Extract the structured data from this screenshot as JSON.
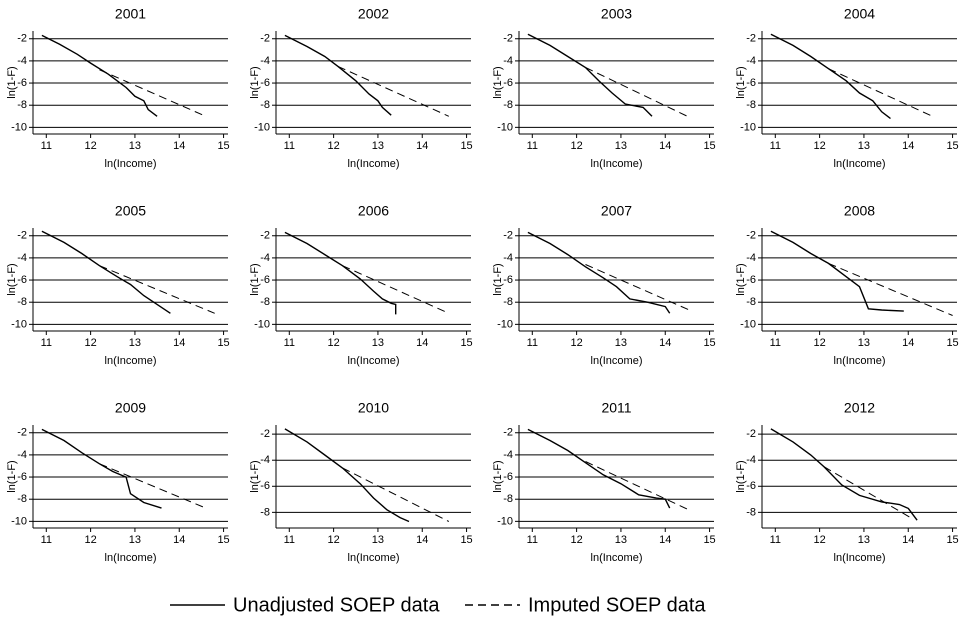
{
  "legend": [
    {
      "name": "Unadjusted SOEP data",
      "color": "#000000",
      "dash": "none"
    },
    {
      "name": "Imputed SOEP data",
      "color": "#000000",
      "dash": "8 5"
    }
  ],
  "chart_data": [
    {
      "type": "line",
      "title": "2001",
      "xlabel": "ln(Income)",
      "ylabel": "ln(1-F)",
      "xlim": [
        10.7,
        15.1
      ],
      "ylim": [
        -10.6,
        -1.3
      ],
      "xticks": [
        11,
        12,
        13,
        14,
        15
      ],
      "yticks": [
        -2,
        -4,
        -6,
        -8,
        -10
      ],
      "grid": true,
      "series": [
        {
          "x": [
            10.9,
            11.3,
            11.7,
            12.0,
            12.4,
            12.8,
            13.0,
            13.2,
            13.3,
            13.5
          ],
          "values": [
            -1.7,
            -2.5,
            -3.4,
            -4.2,
            -5.2,
            -6.4,
            -7.2,
            -7.6,
            -8.4,
            -9.0
          ]
        },
        {
          "x": [
            12.2,
            14.6
          ],
          "values": [
            -4.8,
            -9.0
          ]
        }
      ]
    },
    {
      "type": "line",
      "title": "2002",
      "xlabel": "ln(Income)",
      "ylabel": "ln(1-F)",
      "xlim": [
        10.7,
        15.1
      ],
      "ylim": [
        -10.6,
        -1.3
      ],
      "xticks": [
        11,
        12,
        13,
        14,
        15
      ],
      "yticks": [
        -2,
        -4,
        -6,
        -8,
        -10
      ],
      "grid": true,
      "series": [
        {
          "x": [
            10.9,
            11.4,
            11.8,
            12.1,
            12.5,
            12.8,
            13.0,
            13.1,
            13.3
          ],
          "values": [
            -1.7,
            -2.7,
            -3.6,
            -4.5,
            -5.8,
            -7.0,
            -7.6,
            -8.2,
            -8.9
          ]
        },
        {
          "x": [
            12.1,
            14.6
          ],
          "values": [
            -4.5,
            -9.0
          ]
        }
      ]
    },
    {
      "type": "line",
      "title": "2003",
      "xlabel": "ln(Income)",
      "ylabel": "ln(1-F)",
      "xlim": [
        10.7,
        15.1
      ],
      "ylim": [
        -10.6,
        -1.3
      ],
      "xticks": [
        11,
        12,
        13,
        14,
        15
      ],
      "yticks": [
        -2,
        -4,
        -6,
        -8,
        -10
      ],
      "grid": true,
      "series": [
        {
          "x": [
            10.9,
            11.4,
            11.8,
            12.2,
            12.5,
            12.8,
            13.1,
            13.5,
            13.7
          ],
          "values": [
            -1.6,
            -2.6,
            -3.6,
            -4.6,
            -5.8,
            -6.9,
            -7.9,
            -8.2,
            -9.0
          ]
        },
        {
          "x": [
            12.2,
            14.5
          ],
          "values": [
            -4.6,
            -9.0
          ]
        }
      ]
    },
    {
      "type": "line",
      "title": "2004",
      "xlabel": "ln(Income)",
      "ylabel": "ln(1-F)",
      "xlim": [
        10.7,
        15.1
      ],
      "ylim": [
        -10.6,
        -1.3
      ],
      "xticks": [
        11,
        12,
        13,
        14,
        15
      ],
      "yticks": [
        -2,
        -4,
        -6,
        -8,
        -10
      ],
      "grid": true,
      "series": [
        {
          "x": [
            10.9,
            11.4,
            11.8,
            12.2,
            12.6,
            12.9,
            13.2,
            13.4,
            13.6
          ],
          "values": [
            -1.6,
            -2.6,
            -3.6,
            -4.7,
            -5.8,
            -6.9,
            -7.6,
            -8.6,
            -9.2
          ]
        },
        {
          "x": [
            12.2,
            14.6
          ],
          "values": [
            -4.7,
            -9.1
          ]
        }
      ]
    },
    {
      "type": "line",
      "title": "2005",
      "xlabel": "ln(Income)",
      "ylabel": "ln(1-F)",
      "xlim": [
        10.7,
        15.1
      ],
      "ylim": [
        -10.6,
        -1.3
      ],
      "xticks": [
        11,
        12,
        13,
        14,
        15
      ],
      "yticks": [
        -2,
        -4,
        -6,
        -8,
        -10
      ],
      "grid": true,
      "series": [
        {
          "x": [
            10.9,
            11.4,
            11.8,
            12.2,
            12.6,
            12.9,
            13.2,
            13.5,
            13.8
          ],
          "values": [
            -1.6,
            -2.6,
            -3.6,
            -4.7,
            -5.7,
            -6.4,
            -7.4,
            -8.2,
            -9.0
          ]
        },
        {
          "x": [
            12.2,
            14.8
          ],
          "values": [
            -4.7,
            -9.0
          ]
        }
      ]
    },
    {
      "type": "line",
      "title": "2006",
      "xlabel": "ln(Income)",
      "ylabel": "ln(1-F)",
      "xlim": [
        10.7,
        15.1
      ],
      "ylim": [
        -10.6,
        -1.3
      ],
      "xticks": [
        11,
        12,
        13,
        14,
        15
      ],
      "yticks": [
        -2,
        -4,
        -6,
        -8,
        -10
      ],
      "grid": true,
      "series": [
        {
          "x": [
            10.9,
            11.4,
            11.8,
            12.2,
            12.6,
            12.9,
            13.1,
            13.3,
            13.4,
            13.4
          ],
          "values": [
            -1.7,
            -2.7,
            -3.7,
            -4.7,
            -5.9,
            -7.0,
            -7.7,
            -8.1,
            -8.2,
            -9.1
          ]
        },
        {
          "x": [
            12.2,
            14.6
          ],
          "values": [
            -4.7,
            -9.0
          ]
        }
      ]
    },
    {
      "type": "line",
      "title": "2007",
      "xlabel": "ln(Income)",
      "ylabel": "ln(1-F)",
      "xlim": [
        10.7,
        15.1
      ],
      "ylim": [
        -10.6,
        -1.3
      ],
      "xticks": [
        11,
        12,
        13,
        14,
        15
      ],
      "yticks": [
        -2,
        -4,
        -6,
        -8,
        -10
      ],
      "grid": true,
      "series": [
        {
          "x": [
            10.9,
            11.4,
            11.8,
            12.2,
            12.6,
            12.9,
            13.2,
            13.6,
            14.0,
            14.1
          ],
          "values": [
            -1.7,
            -2.7,
            -3.7,
            -4.8,
            -5.8,
            -6.6,
            -7.7,
            -8.0,
            -8.4,
            -9.0
          ]
        },
        {
          "x": [
            12.2,
            14.6
          ],
          "values": [
            -4.6,
            -8.8
          ]
        }
      ]
    },
    {
      "type": "line",
      "title": "2008",
      "xlabel": "ln(Income)",
      "ylabel": "ln(1-F)",
      "xlim": [
        10.7,
        15.1
      ],
      "ylim": [
        -10.6,
        -1.3
      ],
      "xticks": [
        11,
        12,
        13,
        14,
        15
      ],
      "yticks": [
        -2,
        -4,
        -6,
        -8,
        -10
      ],
      "grid": true,
      "series": [
        {
          "x": [
            10.9,
            11.4,
            11.8,
            12.2,
            12.6,
            12.9,
            13.1,
            13.4,
            13.9
          ],
          "values": [
            -1.6,
            -2.6,
            -3.6,
            -4.5,
            -5.7,
            -6.6,
            -8.6,
            -8.7,
            -8.8
          ]
        },
        {
          "x": [
            12.2,
            15.0
          ],
          "values": [
            -4.5,
            -9.2
          ]
        }
      ]
    },
    {
      "type": "line",
      "title": "2009",
      "xlabel": "ln(Income)",
      "ylabel": "ln(1-F)",
      "xlim": [
        10.7,
        15.1
      ],
      "ylim": [
        -10.6,
        -1.3
      ],
      "xticks": [
        11,
        12,
        13,
        14,
        15
      ],
      "yticks": [
        -2,
        -4,
        -6,
        -8,
        -10
      ],
      "grid": true,
      "series": [
        {
          "x": [
            10.9,
            11.4,
            11.8,
            12.2,
            12.5,
            12.8,
            12.9,
            13.2,
            13.6
          ],
          "values": [
            -1.7,
            -2.7,
            -3.8,
            -4.8,
            -5.5,
            -6.0,
            -7.5,
            -8.3,
            -8.8
          ]
        },
        {
          "x": [
            12.2,
            14.6
          ],
          "values": [
            -4.8,
            -8.8
          ]
        }
      ]
    },
    {
      "type": "line",
      "title": "2010",
      "xlabel": "ln(Income)",
      "ylabel": "ln(1-F)",
      "xlim": [
        10.7,
        15.1
      ],
      "ylim": [
        -9.2,
        -1.3
      ],
      "xticks": [
        11,
        12,
        13,
        14,
        15
      ],
      "yticks": [
        -2,
        -4,
        -6,
        -8
      ],
      "grid": true,
      "series": [
        {
          "x": [
            10.9,
            11.4,
            11.8,
            12.2,
            12.6,
            12.9,
            13.2,
            13.5,
            13.7
          ],
          "values": [
            -1.6,
            -2.6,
            -3.6,
            -4.6,
            -5.8,
            -6.9,
            -7.8,
            -8.4,
            -8.7
          ]
        },
        {
          "x": [
            12.2,
            14.6
          ],
          "values": [
            -4.6,
            -8.7
          ]
        }
      ]
    },
    {
      "type": "line",
      "title": "2011",
      "xlabel": "ln(Income)",
      "ylabel": "ln(1-F)",
      "xlim": [
        10.7,
        15.1
      ],
      "ylim": [
        -10.6,
        -1.3
      ],
      "xticks": [
        11,
        12,
        13,
        14,
        15
      ],
      "yticks": [
        -2,
        -4,
        -6,
        -8,
        -10
      ],
      "grid": true,
      "series": [
        {
          "x": [
            10.9,
            11.4,
            11.8,
            12.2,
            12.6,
            13.0,
            13.4,
            13.8,
            14.0,
            14.1
          ],
          "values": [
            -1.7,
            -2.7,
            -3.6,
            -4.7,
            -5.8,
            -6.6,
            -7.6,
            -7.9,
            -8.0,
            -8.8
          ]
        },
        {
          "x": [
            12.2,
            14.5
          ],
          "values": [
            -4.6,
            -8.9
          ]
        }
      ]
    },
    {
      "type": "line",
      "title": "2012",
      "xlabel": "ln(Income)",
      "ylabel": "ln(1-F)",
      "xlim": [
        10.7,
        15.1
      ],
      "ylim": [
        -9.2,
        -1.3
      ],
      "xticks": [
        11,
        12,
        13,
        14,
        15
      ],
      "yticks": [
        -2,
        -4,
        -6,
        -8
      ],
      "grid": true,
      "series": [
        {
          "x": [
            10.9,
            11.4,
            11.8,
            12.1,
            12.5,
            12.9,
            13.4,
            13.8,
            14.0,
            14.2
          ],
          "values": [
            -1.6,
            -2.6,
            -3.6,
            -4.5,
            -5.9,
            -6.7,
            -7.2,
            -7.4,
            -7.7,
            -8.6
          ]
        },
        {
          "x": [
            12.1,
            14.1
          ],
          "values": [
            -4.5,
            -8.5
          ]
        }
      ]
    }
  ]
}
